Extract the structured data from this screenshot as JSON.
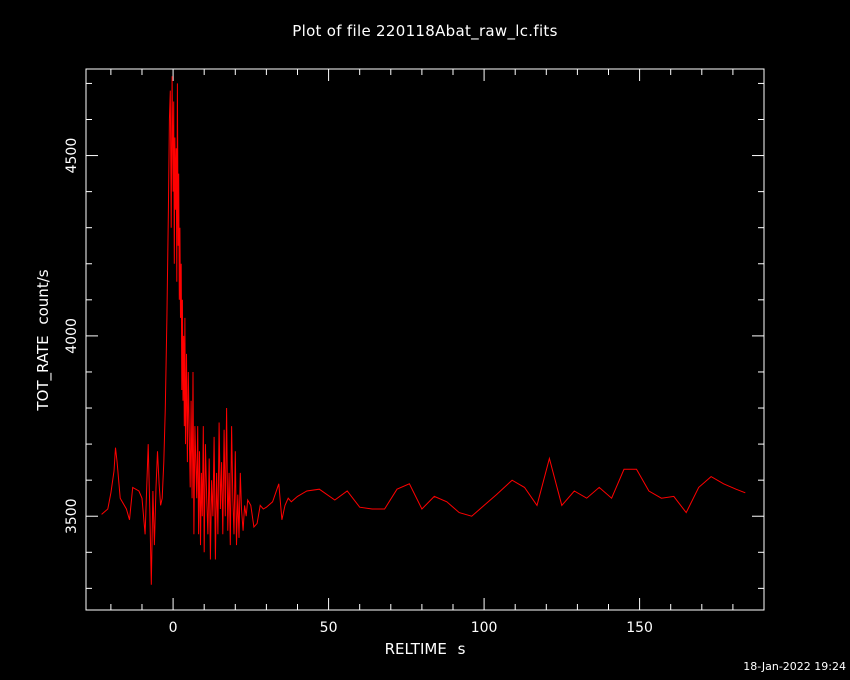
{
  "chart_data": {
    "type": "line",
    "title": "Plot of file 220118Abat_raw_lc.fits",
    "xlabel": "RELTIME  s",
    "ylabel": "TOT_RATE  count/s",
    "xlim": [
      -28,
      190
    ],
    "ylim": [
      3240,
      4740
    ],
    "xticks_major": [
      0,
      50,
      100,
      150
    ],
    "xtick_labels": [
      "0",
      "50",
      "100",
      "150"
    ],
    "yticks_major": [
      3500,
      4000,
      4500
    ],
    "ytick_labels": [
      "3500",
      "4000",
      "4500"
    ],
    "grid": false,
    "legend": "none",
    "colors": {
      "background": "#000000",
      "axes": "#ffffff",
      "series": "#ff0000"
    },
    "series": [
      {
        "name": "",
        "x": [
          -23,
          -21,
          -20,
          -19,
          -18.5,
          -18,
          -17,
          -15,
          -14,
          -13,
          -11,
          -10,
          -9,
          -8,
          -7.5,
          -7,
          -6.5,
          -6,
          -5.5,
          -5,
          -4.5,
          -4,
          -3.5,
          -3,
          -2.5,
          -2,
          -1.5,
          -1.2,
          -0.9,
          -0.6,
          -0.3,
          0,
          0.2,
          0.4,
          0.6,
          0.8,
          1,
          1.2,
          1.4,
          1.6,
          1.8,
          2,
          2.2,
          2.4,
          2.6,
          2.8,
          3,
          3.2,
          3.4,
          3.6,
          3.8,
          4,
          4.3,
          4.6,
          4.9,
          5.2,
          5.5,
          5.8,
          6.1,
          6.4,
          6.7,
          7,
          7.3,
          7.6,
          7.9,
          8.2,
          8.5,
          8.8,
          9.1,
          9.4,
          9.7,
          10,
          10.4,
          10.8,
          11.2,
          11.6,
          12,
          12.4,
          12.8,
          13.2,
          13.6,
          14,
          14.4,
          14.8,
          15.2,
          15.6,
          16,
          16.4,
          16.8,
          17.2,
          17.6,
          18,
          18.4,
          18.8,
          19.2,
          19.6,
          20,
          20.4,
          20.8,
          21.2,
          21.6,
          22,
          22.5,
          23,
          23.5,
          24,
          25,
          26,
          27,
          28,
          29,
          30,
          32,
          34,
          35,
          36,
          37,
          38,
          40,
          43,
          47,
          52,
          56,
          60,
          64,
          68,
          72,
          76,
          80,
          84,
          88,
          92,
          96,
          100,
          104,
          109,
          113,
          117,
          121,
          125,
          129,
          133,
          137,
          141,
          145,
          149,
          153,
          157,
          161,
          165,
          169,
          173,
          177,
          181,
          184
        ],
        "y": [
          3505,
          3520,
          3565,
          3625,
          3690,
          3650,
          3550,
          3520,
          3490,
          3580,
          3570,
          3550,
          3450,
          3700,
          3520,
          3310,
          3570,
          3420,
          3580,
          3680,
          3590,
          3530,
          3550,
          3650,
          3800,
          4050,
          4350,
          4600,
          4680,
          4300,
          4720,
          4400,
          4650,
          4200,
          4550,
          4350,
          4520,
          4150,
          4700,
          4250,
          4450,
          4100,
          4300,
          4050,
          4200,
          3850,
          4100,
          3820,
          4000,
          3750,
          4050,
          3700,
          3950,
          3650,
          3900,
          3720,
          3580,
          3820,
          3550,
          3900,
          3450,
          3750,
          3650,
          3550,
          3750,
          3450,
          3680,
          3420,
          3620,
          3500,
          3750,
          3400,
          3700,
          3550,
          3450,
          3660,
          3380,
          3600,
          3500,
          3720,
          3380,
          3620,
          3450,
          3760,
          3520,
          3650,
          3450,
          3740,
          3500,
          3800,
          3460,
          3620,
          3420,
          3750,
          3550,
          3450,
          3680,
          3420,
          3560,
          3440,
          3620,
          3520,
          3460,
          3530,
          3500,
          3545,
          3530,
          3470,
          3480,
          3530,
          3520,
          3525,
          3540,
          3590,
          3490,
          3530,
          3550,
          3540,
          3555,
          3570,
          3575,
          3545,
          3570,
          3525,
          3520,
          3520,
          3575,
          3590,
          3520,
          3555,
          3540,
          3510,
          3500,
          3530,
          3560,
          3600,
          3580,
          3530,
          3660,
          3530,
          3570,
          3550,
          3580,
          3550,
          3630,
          3630,
          3570,
          3550,
          3555,
          3510,
          3580,
          3610,
          3590,
          3575,
          3565
        ]
      }
    ]
  },
  "footer": {
    "timestamp": "18-Jan-2022 19:24"
  }
}
